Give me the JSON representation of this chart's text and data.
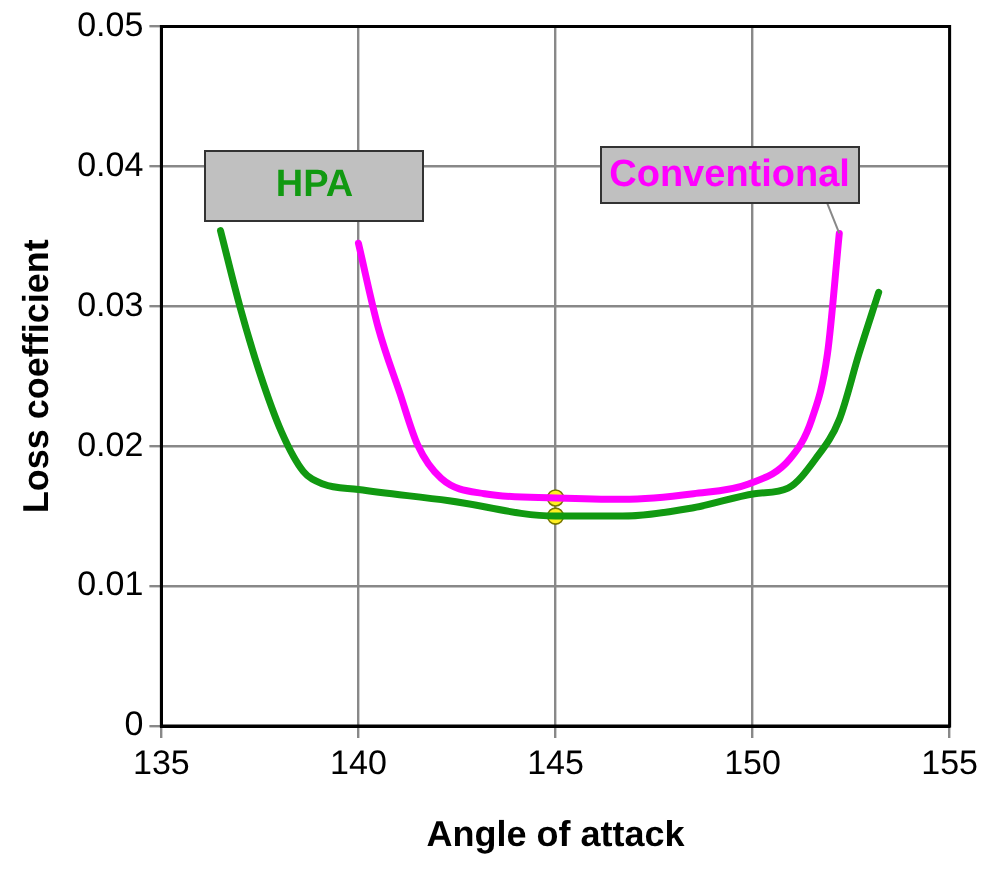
{
  "chart_data": {
    "type": "line",
    "xlabel": "Angle of attack",
    "ylabel": "Loss coefficient",
    "xlim": [
      135,
      155
    ],
    "xticks": [
      135,
      140,
      145,
      150,
      155
    ],
    "ylim": [
      0,
      0.05
    ],
    "yticks": [
      0,
      0.01,
      0.02,
      0.03,
      0.04,
      0.05
    ],
    "grid": true,
    "legend": false,
    "marker": "none",
    "line_style": "solid",
    "series": [
      {
        "name": "HPA",
        "color": "#119911",
        "x": [
          136.5,
          137.0,
          137.5,
          138.05,
          138.6,
          139.1,
          140.0,
          142.3,
          145.0,
          146.7,
          148.5,
          150.05,
          150.9,
          151.6,
          152.2,
          152.7,
          153.2
        ],
        "values": [
          0.0354,
          0.0299,
          0.0252,
          0.021,
          0.0182,
          0.0173,
          0.0169,
          0.0161,
          0.015,
          0.015,
          0.0156,
          0.0166,
          0.017,
          0.0191,
          0.0219,
          0.0266,
          0.031
        ]
      },
      {
        "name": "Conventional",
        "color": "#ff00ff",
        "x": [
          140.0,
          140.5,
          141.05,
          141.5,
          142.1,
          143.2,
          145.0,
          146.7,
          148.5,
          149.9,
          150.95,
          151.5,
          151.9,
          152.2
        ],
        "values": [
          0.0345,
          0.0285,
          0.0238,
          0.0201,
          0.0177,
          0.0166,
          0.0163,
          0.0162,
          0.0166,
          0.0173,
          0.0191,
          0.0219,
          0.0266,
          0.0352
        ]
      },
      {
        "type": "scatter",
        "color": "#ffee22",
        "marker": "circle",
        "x": [
          145,
          145
        ],
        "values": [
          0.0163,
          0.015
        ]
      }
    ]
  }
}
